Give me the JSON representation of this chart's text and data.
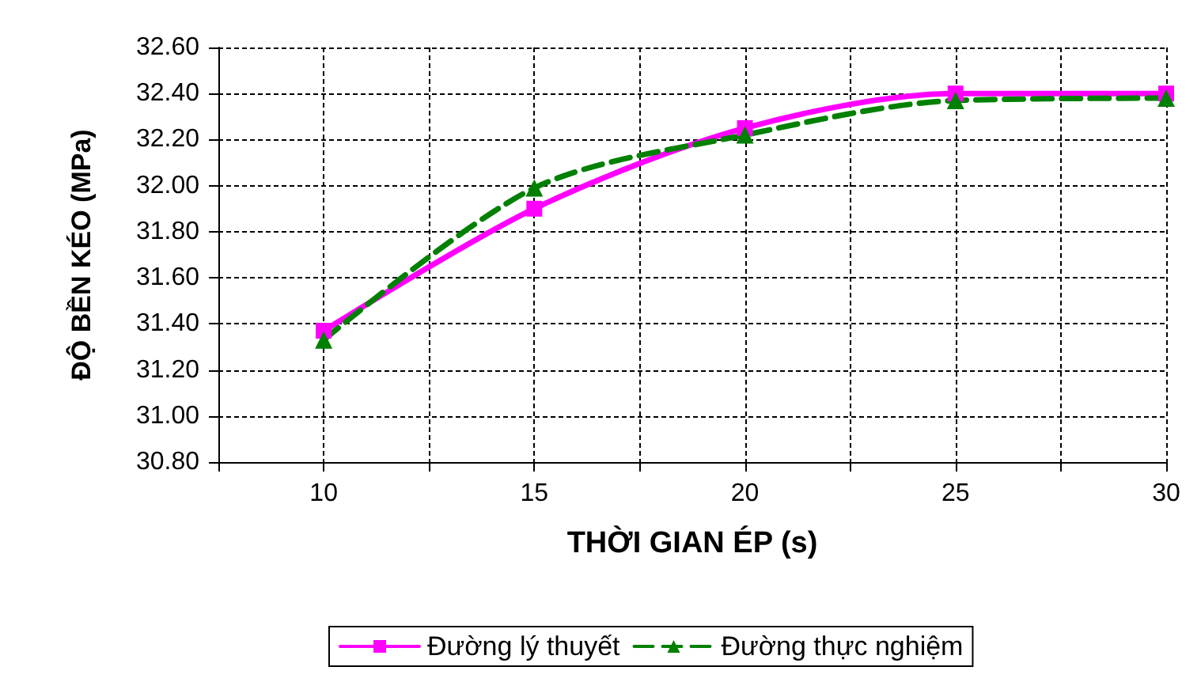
{
  "chart_data": {
    "type": "line",
    "xlabel": "THỜI GIAN ÉP (s)",
    "ylabel": "ĐỘ BỀN KÉO (MPa)",
    "x": [
      10,
      15,
      20,
      25,
      30
    ],
    "series": [
      {
        "name": "Đường lý thuyết",
        "color": "#ff00ff",
        "values": [
          31.37,
          31.9,
          32.25,
          32.4,
          32.4
        ],
        "marker": "square",
        "line_style": "solid"
      },
      {
        "name": "Đường thực nghiệm",
        "color": "#008000",
        "values": [
          31.33,
          31.99,
          32.22,
          32.37,
          32.38
        ],
        "marker": "triangle",
        "line_style": "dashed"
      }
    ],
    "xlim": [
      7.5,
      30
    ],
    "xticks": [
      {
        "value": 7.5,
        "label": null
      },
      10,
      {
        "value": 12.5,
        "label": null
      },
      15,
      {
        "value": 17.5,
        "label": null
      },
      20,
      {
        "value": 22.5,
        "label": null
      },
      25,
      {
        "value": 27.5,
        "label": null
      },
      30
    ],
    "ylim": [
      30.8,
      32.6
    ],
    "yticks": [
      {
        "value": 30.8,
        "label": "30.80"
      },
      {
        "value": 31,
        "label": "31.00"
      },
      {
        "value": 31.2,
        "label": "31.20"
      },
      {
        "value": 31.4,
        "label": "31.40"
      },
      {
        "value": 31.6,
        "label": "31.60"
      },
      {
        "value": 31.8,
        "label": "31.80"
      },
      {
        "value": 32,
        "label": "32.00"
      },
      {
        "value": 32.2,
        "label": "32.20"
      },
      {
        "value": 32.4,
        "label": "32.40"
      },
      {
        "value": 32.6,
        "label": "32.60"
      }
    ],
    "grid": true,
    "legend": "bottom"
  }
}
